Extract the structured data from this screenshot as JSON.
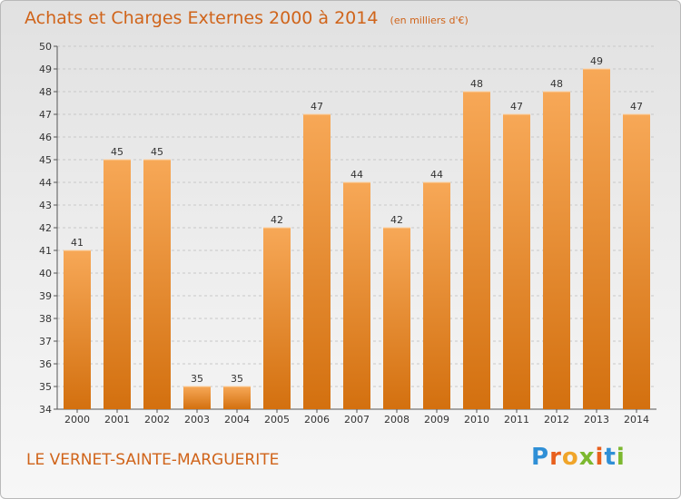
{
  "header": {
    "title": "Achats et Charges Externes 2000 à 2014",
    "unit": "(en milliers d'€)"
  },
  "footer": {
    "city": "LE VERNET-SAINTE-MARGUERITE",
    "brand": "Proxiti"
  },
  "colors": {
    "bar_top": "#f7a857",
    "bar_bottom": "#d3700f",
    "text_accent": "#d0641a",
    "brand_letters": [
      "#2f8fd6",
      "#e8601d",
      "#f0a52a",
      "#7cb82f",
      "#e8601d",
      "#2f8fd6",
      "#7cb82f"
    ]
  },
  "chart_data": {
    "type": "bar",
    "title": "Achats et Charges Externes 2000 à 2014",
    "subtitle": "(en milliers d'€)",
    "categories": [
      "2000",
      "2001",
      "2002",
      "2003",
      "2004",
      "2005",
      "2006",
      "2007",
      "2008",
      "2009",
      "2010",
      "2011",
      "2012",
      "2013",
      "2014"
    ],
    "values": [
      41,
      45,
      45,
      35,
      35,
      42,
      47,
      44,
      42,
      44,
      48,
      47,
      48,
      49,
      47
    ],
    "ylim": [
      34,
      50
    ],
    "yticks": [
      34,
      35,
      36,
      37,
      38,
      39,
      40,
      41,
      42,
      43,
      44,
      45,
      46,
      47,
      48,
      49,
      50
    ],
    "grid": "horizontal dashed",
    "data_labels": true
  }
}
